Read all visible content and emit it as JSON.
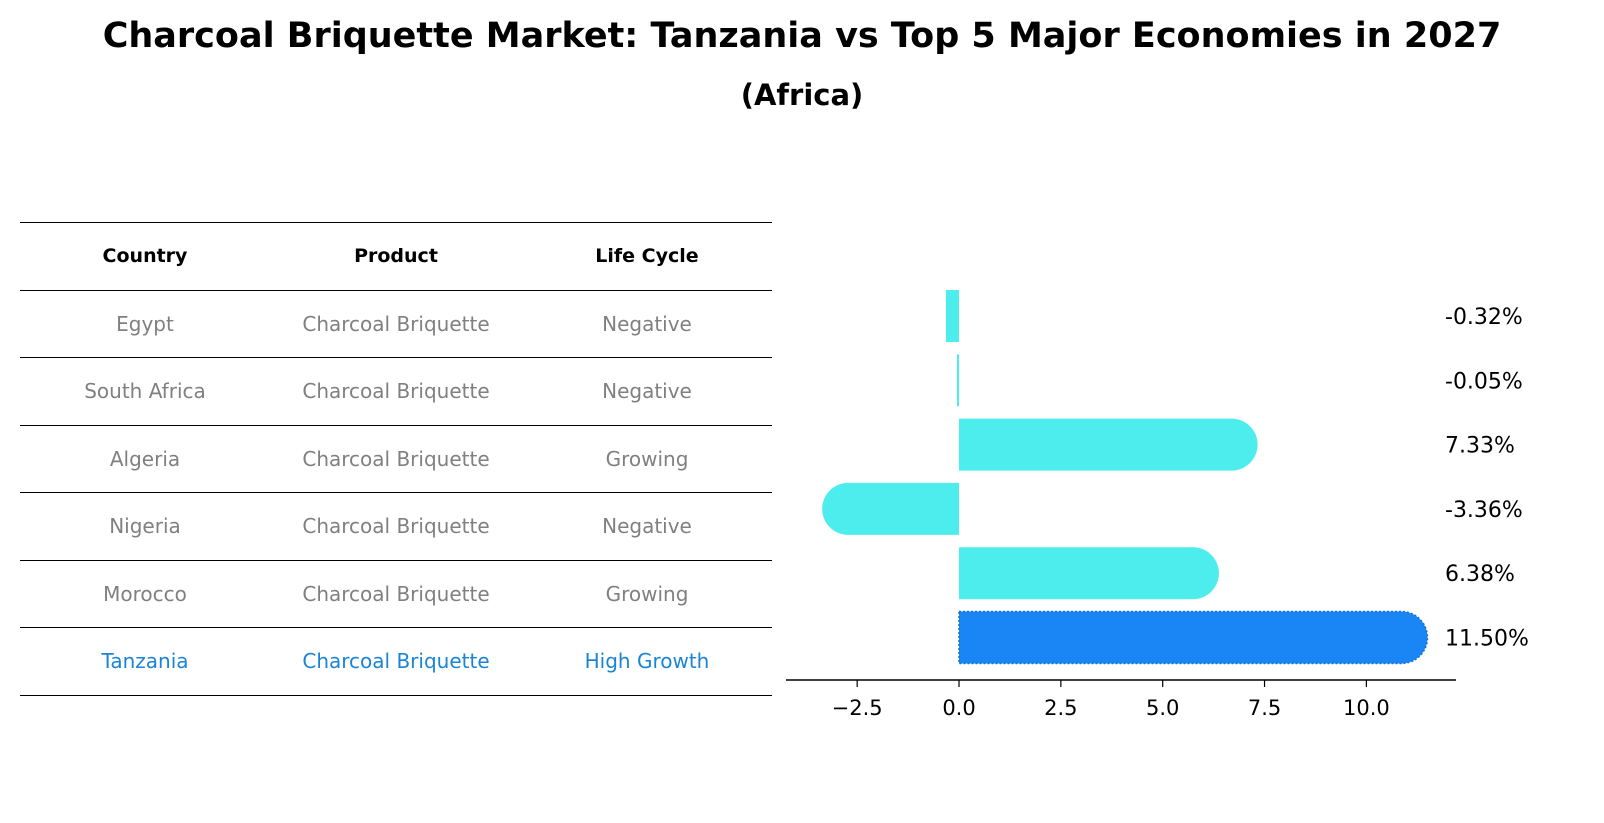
{
  "title": "Charcoal Briquette Market: Tanzania vs Top 5 Major Economies in 2027",
  "subtitle": "(Africa)",
  "table": {
    "headers": [
      "Country",
      "Product",
      "Life Cycle"
    ],
    "rows": [
      [
        "Egypt",
        "Charcoal Briquette",
        "Negative"
      ],
      [
        "South Africa",
        "Charcoal Briquette",
        "Negative"
      ],
      [
        "Algeria",
        "Charcoal Briquette",
        "Growing"
      ],
      [
        "Nigeria",
        "Charcoal Briquette",
        "Negative"
      ],
      [
        "Morocco",
        "Charcoal Briquette",
        "Growing"
      ],
      [
        "Tanzania",
        "Charcoal Briquette",
        "High Growth"
      ]
    ],
    "highlight_row": 5,
    "highlight_color": "#1a85d6"
  },
  "chart_data": {
    "type": "bar",
    "orientation": "horizontal",
    "categories": [
      "Egypt",
      "South Africa",
      "Algeria",
      "Nigeria",
      "Morocco",
      "Tanzania"
    ],
    "values": [
      -0.32,
      -0.05,
      7.33,
      -3.36,
      6.38,
      11.5
    ],
    "labels": [
      "-0.32%",
      "-0.05%",
      "7.33%",
      "-3.36%",
      "6.38%",
      "11.50%"
    ],
    "xlim": [
      -4.1,
      12.2
    ],
    "xticks": [
      -2.5,
      0.0,
      2.5,
      5.0,
      7.5,
      10.0
    ],
    "xtick_labels": [
      "−2.5",
      "0.0",
      "2.5",
      "5.0",
      "7.5",
      "10.0"
    ],
    "bar_color": "#4deded",
    "highlight_color": "#1a85f5",
    "highlight_index": 5
  }
}
